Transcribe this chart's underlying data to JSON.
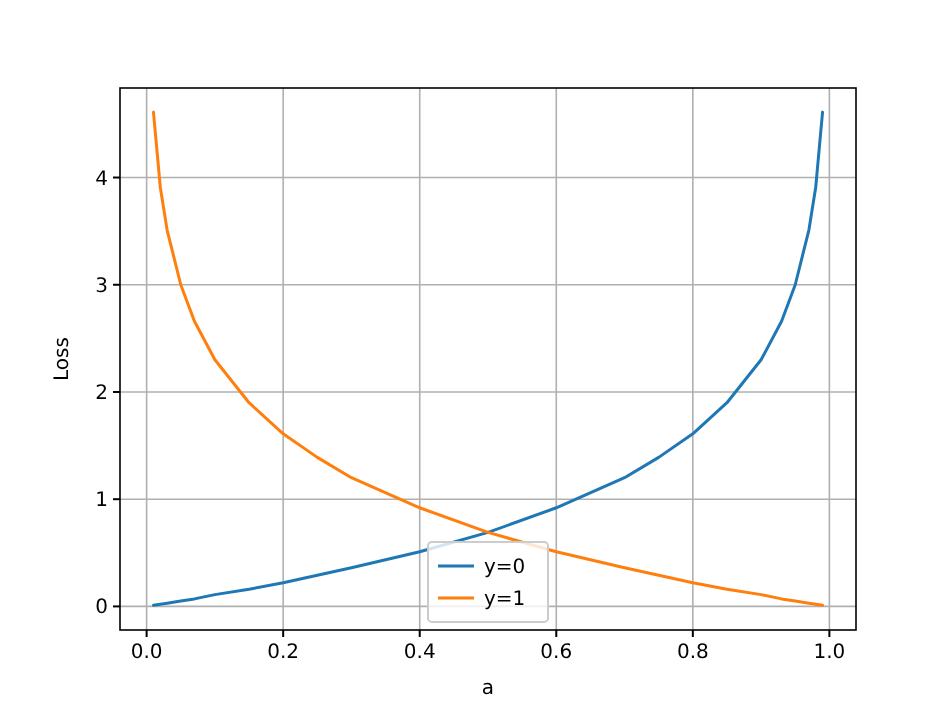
{
  "chart_data": {
    "type": "line",
    "xlabel": "a",
    "ylabel": "Loss",
    "x": [
      0.01,
      0.02,
      0.03,
      0.05,
      0.07,
      0.1,
      0.15,
      0.2,
      0.25,
      0.3,
      0.4,
      0.5,
      0.6,
      0.7,
      0.75,
      0.8,
      0.85,
      0.9,
      0.93,
      0.95,
      0.97,
      0.98,
      0.99
    ],
    "series": [
      {
        "name": "y=0",
        "color": "#1f77b4",
        "values": [
          0.01,
          0.02,
          0.03,
          0.05,
          0.07,
          0.11,
          0.16,
          0.22,
          0.29,
          0.36,
          0.51,
          0.69,
          0.92,
          1.2,
          1.39,
          1.61,
          1.9,
          2.3,
          2.66,
          3.0,
          3.51,
          3.91,
          4.61
        ]
      },
      {
        "name": "y=1",
        "color": "#ff7f0e",
        "values": [
          4.61,
          3.91,
          3.51,
          3.0,
          2.66,
          2.3,
          1.9,
          1.61,
          1.39,
          1.2,
          0.92,
          0.69,
          0.51,
          0.36,
          0.29,
          0.22,
          0.16,
          0.11,
          0.07,
          0.05,
          0.03,
          0.02,
          0.01
        ]
      }
    ],
    "xlim": [
      -0.039,
      1.039
    ],
    "ylim": [
      -0.22,
      4.835
    ],
    "xticks": [
      {
        "value": 0,
        "label": "0.0"
      },
      {
        "value": 0.2,
        "label": "0.2"
      },
      {
        "value": 0.4,
        "label": "0.4"
      },
      {
        "value": 0.6,
        "label": "0.6"
      },
      {
        "value": 0.8,
        "label": "0.8"
      },
      {
        "value": 1,
        "label": "1.0"
      }
    ],
    "yticks": [
      0,
      1,
      2,
      3,
      4
    ],
    "grid": true,
    "legend": "bottom"
  }
}
